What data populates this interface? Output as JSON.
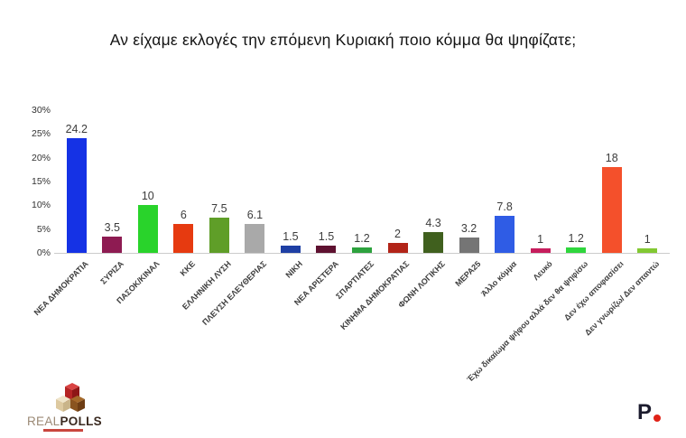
{
  "title": "Αν είχαμε εκλογές την επόμενη Κυριακή ποιο κόμμα θα ψηφίζατε;",
  "chart_data": {
    "type": "bar",
    "title": "Αν είχαμε εκλογές την επόμενη Κυριακή ποιο κόμμα θα ψηφίζατε;",
    "categories": [
      "ΝΕΑ ΔΗΜΟΚΡΑΤΙΑ",
      "ΣΥΡΙΖΑ",
      "ΠΑΣΟΚ/ΚΙΝΑΛ",
      "ΚΚΕ",
      "ΕΛΛΗΝΙΚΗ ΛΥΣΗ",
      "ΠΛΕΥΣΗ ΕΛΕΥΘΕΡΙΑΣ",
      "ΝΙΚΗ",
      "ΝΕΑ ΑΡΙΣΤΕΡΑ",
      "ΣΠΑΡΤΙΑΤΕΣ",
      "ΚΙΝΗΜΑ ΔΗΜΟΚΡΑΤΙΑΣ",
      "ΦΩΝΗ ΛΟΓΙΚΗΣ",
      "ΜΕΡΑ25",
      "Άλλο κόμμα",
      "Λευκό",
      "Έχω δικαίωμα ψήφου αλλά δεν θα ψηφίσω",
      "Δεν έχω αποφασίσει",
      "Δεν γνωρίζω/ Δεν απαντώ"
    ],
    "values": [
      24.2,
      3.5,
      10,
      6,
      7.5,
      6.1,
      1.5,
      1.5,
      1.2,
      2,
      4.3,
      3.2,
      7.8,
      1,
      1.2,
      18,
      1
    ],
    "value_labels": [
      "24.2",
      "3.5",
      "10",
      "6",
      "7.5",
      "6.1",
      "1.5",
      "1.5",
      "1.2",
      "2",
      "4.3",
      "3.2",
      "7.8",
      "1",
      "1.2",
      "18",
      "1"
    ],
    "bar_colors": [
      "#1532e5",
      "#8e1b52",
      "#29d32b",
      "#e63a10",
      "#5f9e28",
      "#a9a9a9",
      "#1e3fa4",
      "#5e1130",
      "#2da23e",
      "#b22418",
      "#40601e",
      "#757575",
      "#2f5ce5",
      "#c61d5c",
      "#2fd63d",
      "#f4502b",
      "#82c832"
    ],
    "xlabel": "",
    "ylabel": "",
    "ylim": [
      0,
      30
    ],
    "ytick_values": [
      0,
      5,
      10,
      15,
      20,
      25,
      30
    ],
    "ytick_labels": [
      "0%",
      "5%",
      "10%",
      "15%",
      "20%",
      "25%",
      "30%"
    ],
    "grid": false,
    "legend_position": "none"
  },
  "branding": {
    "logo_left": {
      "name_light": "REAL",
      "name_bold": "POLLS"
    },
    "logo_right": {
      "letter": "P",
      "dot_color": "#e02318"
    }
  }
}
